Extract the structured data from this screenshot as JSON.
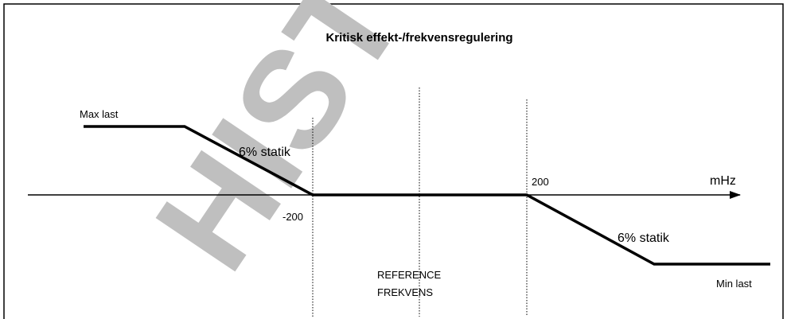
{
  "title": "Kritisk effekt-/frekvensregulering",
  "watermark": "HIST",
  "labels": {
    "max_load": "Max last",
    "droop_left": "6% statik",
    "minus_200": "-200",
    "plus_200": "200",
    "unit": "mHz",
    "droop_right": "6% statik",
    "reference_line1": "REFERENCE",
    "reference_line2": "FREKVENS",
    "min_load": "Min last"
  }
}
